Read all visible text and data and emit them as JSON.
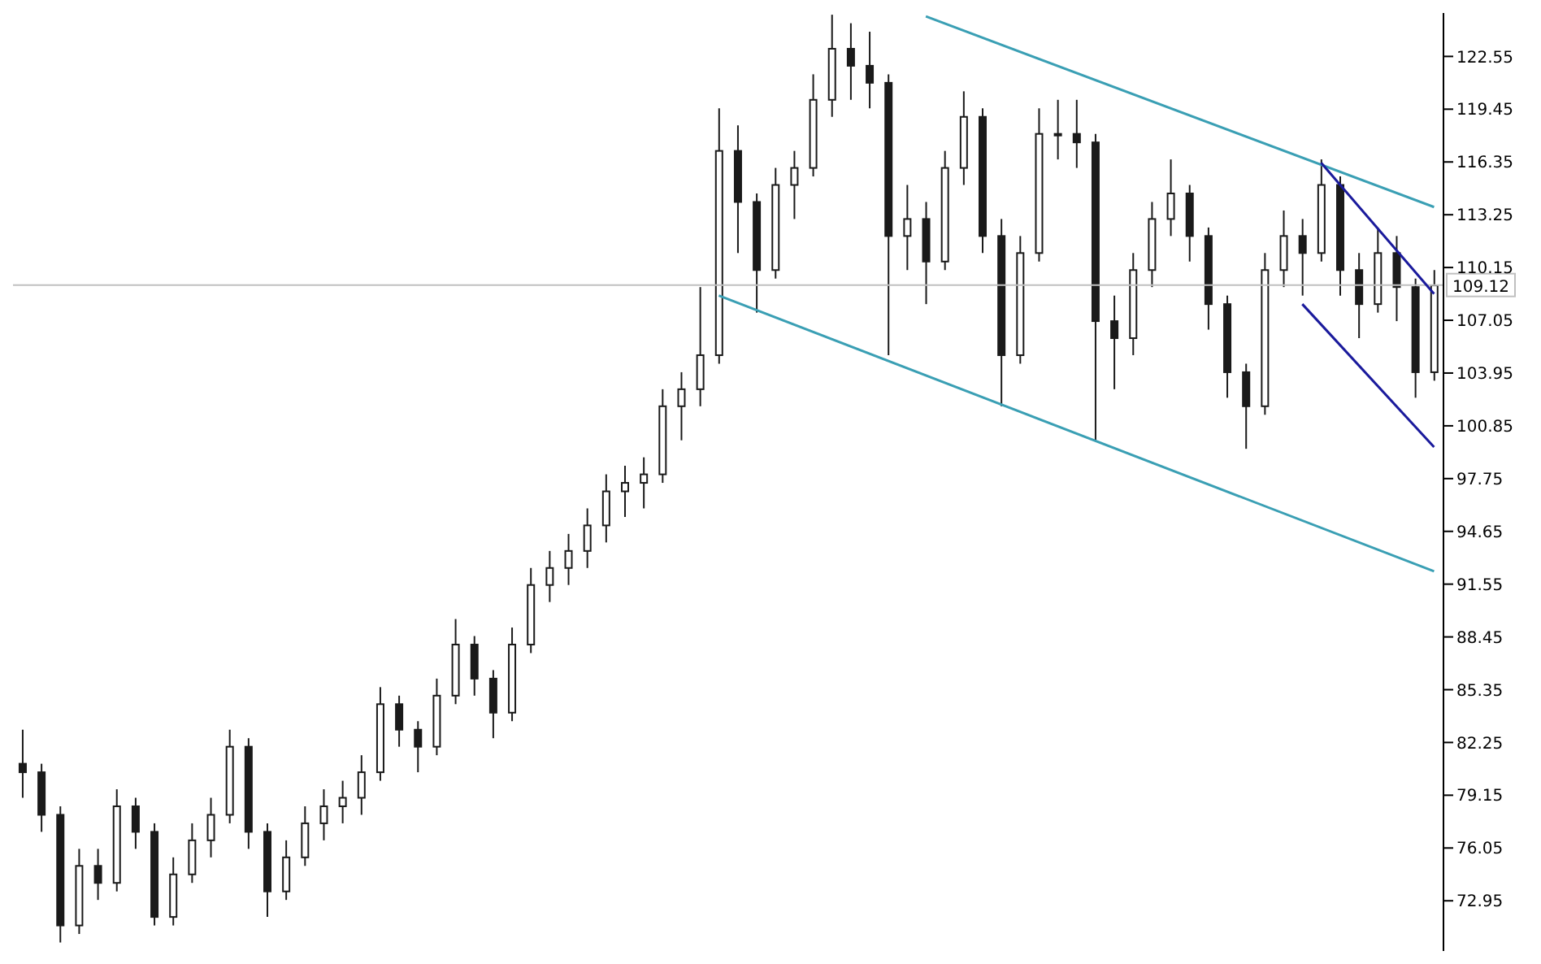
{
  "chart_data": {
    "type": "candlestick",
    "categories": [
      null,
      null,
      null,
      null,
      null,
      null,
      null,
      null,
      null,
      null,
      null,
      null,
      null,
      null,
      null,
      null,
      null,
      null,
      null,
      null,
      null,
      null,
      null,
      null,
      null,
      null,
      null,
      null,
      null,
      null,
      null,
      null,
      null,
      null,
      null,
      null,
      null,
      null,
      null,
      null,
      null,
      null,
      null,
      null,
      null,
      null,
      null,
      null,
      null,
      null,
      null,
      null,
      null,
      null,
      null,
      null,
      null,
      null,
      null,
      null,
      null,
      null,
      null,
      null,
      null,
      null,
      null,
      null,
      null,
      null,
      null,
      null,
      null,
      null,
      null,
      null
    ],
    "color": "#1a1a1a",
    "ohlc": [
      [
        81,
        83,
        79,
        80.5
      ],
      [
        80.5,
        81,
        77,
        78
      ],
      [
        78,
        78.5,
        70.5,
        71.5
      ],
      [
        71.5,
        76,
        71,
        75
      ],
      [
        75,
        76,
        73,
        74
      ],
      [
        74,
        79.5,
        73.5,
        78.5
      ],
      [
        78.5,
        79,
        76,
        77
      ],
      [
        77,
        77.5,
        71.5,
        72
      ],
      [
        72,
        75.5,
        71.5,
        74.5
      ],
      [
        74.5,
        77.5,
        74,
        76.5
      ],
      [
        76.5,
        79,
        75.5,
        78
      ],
      [
        78,
        83,
        77.5,
        82
      ],
      [
        82,
        82.5,
        76,
        77
      ],
      [
        77,
        77.5,
        72,
        73.5
      ],
      [
        73.5,
        76.5,
        73,
        75.5
      ],
      [
        75.5,
        78.5,
        75,
        77.5
      ],
      [
        77.5,
        79.5,
        76.5,
        78.5
      ],
      [
        78.5,
        80,
        77.5,
        79
      ],
      [
        79,
        81.5,
        78,
        80.5
      ],
      [
        80.5,
        85.5,
        80,
        84.5
      ],
      [
        84.5,
        85,
        82,
        83
      ],
      [
        83,
        83.5,
        80.5,
        82
      ],
      [
        82,
        86,
        81.5,
        85
      ],
      [
        85,
        89.5,
        84.5,
        88
      ],
      [
        88,
        88.5,
        85,
        86
      ],
      [
        86,
        86.5,
        82.5,
        84
      ],
      [
        84,
        89,
        83.5,
        88
      ],
      [
        88,
        92.5,
        87.5,
        91.5
      ],
      [
        91.5,
        93.5,
        90.5,
        92.5
      ],
      [
        92.5,
        94.5,
        91.5,
        93.5
      ],
      [
        93.5,
        96,
        92.5,
        95
      ],
      [
        95,
        98,
        94,
        97
      ],
      [
        97,
        98.5,
        95.5,
        97.5
      ],
      [
        97.5,
        99,
        96,
        98
      ],
      [
        98,
        103,
        97.5,
        102
      ],
      [
        102,
        104,
        100,
        103
      ],
      [
        103,
        109,
        102,
        105
      ],
      [
        105,
        119.5,
        104.5,
        117
      ],
      [
        117,
        118.5,
        111,
        114
      ],
      [
        114,
        114.5,
        107.5,
        110
      ],
      [
        110,
        116,
        109.5,
        115
      ],
      [
        115,
        117,
        113,
        116
      ],
      [
        116,
        121.5,
        115.5,
        120
      ],
      [
        120,
        125,
        119,
        123
      ],
      [
        123,
        124.5,
        120,
        122
      ],
      [
        122,
        124,
        119.5,
        121
      ],
      [
        121,
        121.5,
        105,
        112
      ],
      [
        112,
        115,
        110,
        113
      ],
      [
        113,
        114,
        108,
        110.5
      ],
      [
        110.5,
        117,
        110,
        116
      ],
      [
        116,
        120.5,
        115,
        119
      ],
      [
        119,
        119.5,
        111,
        112
      ],
      [
        112,
        113,
        102,
        105
      ],
      [
        105,
        112,
        104.5,
        111
      ],
      [
        111,
        119.5,
        110.5,
        118
      ],
      [
        118,
        120,
        116.5,
        118
      ],
      [
        118,
        120,
        116,
        117.5
      ],
      [
        117.5,
        118,
        100,
        107
      ],
      [
        107,
        108.5,
        103,
        106
      ],
      [
        106,
        111,
        105,
        110
      ],
      [
        110,
        114,
        109,
        113
      ],
      [
        113,
        116.5,
        112,
        114.5
      ],
      [
        114.5,
        115,
        110.5,
        112
      ],
      [
        112,
        112.5,
        106.5,
        108
      ],
      [
        108,
        108.5,
        102.5,
        104
      ],
      [
        104,
        104.5,
        99.5,
        102
      ],
      [
        102,
        111,
        101.5,
        110
      ],
      [
        110,
        113.5,
        109,
        112
      ],
      [
        112,
        113,
        108.5,
        111
      ],
      [
        111,
        116.5,
        110.5,
        115
      ],
      [
        115,
        115.5,
        108.5,
        110
      ],
      [
        110,
        111,
        106,
        108
      ],
      [
        108,
        112.5,
        107.5,
        111
      ],
      [
        111,
        112,
        107,
        109
      ],
      [
        109,
        109.5,
        102.5,
        104
      ],
      [
        104,
        110,
        103.5,
        109.1
      ]
    ],
    "series": [
      {
        "type": "line",
        "color": "#3a9fb4",
        "values": [
          null,
          null,
          null,
          null,
          null,
          null,
          null,
          null,
          null,
          null,
          null,
          null,
          null,
          null,
          null,
          null,
          null,
          null,
          null,
          null,
          null,
          null,
          null,
          null,
          null,
          null,
          null,
          null,
          null,
          null,
          null,
          null,
          null,
          null,
          null,
          null,
          null,
          null,
          null,
          null,
          null,
          null,
          null,
          null,
          null,
          null,
          null,
          null,
          124.9,
          null,
          null,
          null,
          null,
          null,
          null,
          null,
          null,
          null,
          null,
          null,
          null,
          null,
          null,
          null,
          null,
          null,
          null,
          null,
          null,
          null,
          null,
          null,
          null,
          null,
          null,
          113.7
        ]
      },
      {
        "type": "line",
        "color": "#3a9fb4",
        "values": [
          null,
          null,
          null,
          null,
          null,
          null,
          null,
          null,
          null,
          null,
          null,
          null,
          null,
          null,
          null,
          null,
          null,
          null,
          null,
          null,
          null,
          null,
          null,
          null,
          null,
          null,
          null,
          null,
          null,
          null,
          null,
          null,
          null,
          null,
          null,
          null,
          null,
          108.5,
          null,
          null,
          null,
          null,
          null,
          null,
          null,
          null,
          null,
          null,
          null,
          null,
          null,
          null,
          null,
          null,
          null,
          null,
          null,
          null,
          null,
          null,
          null,
          null,
          null,
          null,
          null,
          null,
          null,
          null,
          null,
          null,
          null,
          null,
          null,
          null,
          null,
          92.3
        ]
      },
      {
        "type": "line",
        "color": "#1a1a9c",
        "values": [
          null,
          null,
          null,
          null,
          null,
          null,
          null,
          null,
          null,
          null,
          null,
          null,
          null,
          null,
          null,
          null,
          null,
          null,
          null,
          null,
          null,
          null,
          null,
          null,
          null,
          null,
          null,
          null,
          null,
          null,
          null,
          null,
          null,
          null,
          null,
          null,
          null,
          null,
          null,
          null,
          null,
          null,
          null,
          null,
          null,
          null,
          null,
          null,
          null,
          null,
          null,
          null,
          null,
          null,
          null,
          null,
          null,
          null,
          null,
          null,
          null,
          null,
          null,
          null,
          null,
          null,
          null,
          null,
          null,
          116.3,
          null,
          null,
          null,
          null,
          null,
          108.6
        ]
      },
      {
        "type": "line",
        "color": "#1a1a9c",
        "values": [
          null,
          null,
          null,
          null,
          null,
          null,
          null,
          null,
          null,
          null,
          null,
          null,
          null,
          null,
          null,
          null,
          null,
          null,
          null,
          null,
          null,
          null,
          null,
          null,
          null,
          null,
          null,
          null,
          null,
          null,
          null,
          null,
          null,
          null,
          null,
          null,
          null,
          null,
          null,
          null,
          null,
          null,
          null,
          null,
          null,
          null,
          null,
          null,
          null,
          null,
          null,
          null,
          null,
          null,
          null,
          null,
          null,
          null,
          null,
          null,
          null,
          null,
          null,
          null,
          null,
          null,
          null,
          null,
          108.0,
          null,
          null,
          null,
          null,
          null,
          null,
          99.6
        ]
      }
    ],
    "ylim": [
      70,
      125.1
    ],
    "yticks": [
      122.55,
      119.45,
      116.35,
      113.25,
      110.15,
      107.05,
      103.95,
      100.85,
      97.75,
      94.65,
      91.55,
      88.45,
      85.35,
      82.25,
      79.15,
      76.05,
      72.95
    ],
    "tick_labels": "y",
    "ref_lines": [
      {
        "axis": "y",
        "value": 109.12,
        "label": "109.12",
        "color": "#c0c0c0"
      }
    ]
  }
}
